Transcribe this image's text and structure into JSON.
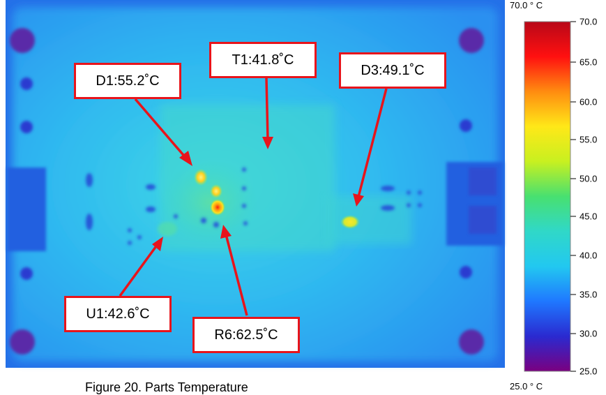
{
  "caption": "Figure 20. Parts Temperature",
  "scale": {
    "max_label": "70.0 ° C",
    "min_label": "25.0 ° C",
    "min_value": 25.0,
    "max_value": 70.0,
    "ticks": [
      "70.0",
      "65.0",
      "60.0",
      "55.0",
      "50.0",
      "45.0",
      "40.0",
      "35.0",
      "30.0",
      "25.0"
    ],
    "colors": [
      "#7a0080",
      "#2a2ad0",
      "#1f78ff",
      "#22c8f0",
      "#30d8c8",
      "#48e070",
      "#c8f020",
      "#ffe818",
      "#ff8c10",
      "#ff1010",
      "#b80818"
    ]
  },
  "callouts": {
    "d1": "D1:55.2˚C",
    "t1": "T1:41.8˚C",
    "d3": "D3:49.1˚C",
    "u1": "U1:42.6˚C",
    "r6": "R6:62.5˚C"
  },
  "colors": {
    "callout_border": "#e8141b",
    "arrow": "#e8141b"
  }
}
